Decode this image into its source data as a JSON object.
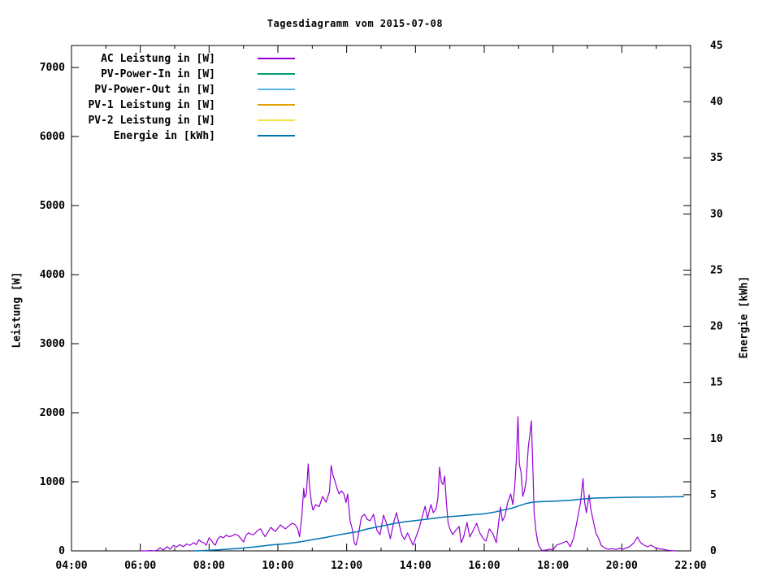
{
  "page": {
    "background": "#ffffff",
    "foreground": "#000000"
  },
  "chart_data": {
    "type": "line",
    "title": "Tagesdiagramm vom 2015-07-08",
    "x_axis": {
      "unit": "time",
      "range_hours": [
        4,
        22
      ],
      "major_tick_hours": 2,
      "minor_tick_hours": 1,
      "tick_labels": [
        "04:00",
        "06:00",
        "08:00",
        "10:00",
        "12:00",
        "14:00",
        "16:00",
        "18:00",
        "20:00",
        "22:00"
      ],
      "tick_values": [
        4,
        6,
        8,
        10,
        12,
        14,
        16,
        18,
        20,
        22
      ]
    },
    "y_left": {
      "label": "Leistung [W]",
      "range": [
        0,
        7318
      ],
      "ticks": [
        0,
        1000,
        2000,
        3000,
        4000,
        5000,
        6000,
        7000
      ],
      "tick_labels": [
        "0",
        "1000",
        "2000",
        "3000",
        "4000",
        "5000",
        "6000",
        "7000"
      ]
    },
    "y_right": {
      "label": "Energie [kWh]",
      "range": [
        0,
        45
      ],
      "ticks": [
        0,
        5,
        10,
        15,
        20,
        25,
        30,
        35,
        40,
        45
      ],
      "tick_labels": [
        "0",
        "5",
        "10",
        "15",
        "20",
        "25",
        "30",
        "35",
        "40",
        "45"
      ]
    },
    "legend_position": "top-left-inside",
    "grid": false,
    "series": [
      {
        "name": "AC Leistung in [W]",
        "color": "#9400d3",
        "axis": "left",
        "line_width": 1.2,
        "points": [
          [
            6.02,
            0
          ],
          [
            6.15,
            0
          ],
          [
            6.3,
            5
          ],
          [
            6.42,
            0
          ],
          [
            6.5,
            12
          ],
          [
            6.58,
            45
          ],
          [
            6.67,
            10
          ],
          [
            6.77,
            60
          ],
          [
            6.87,
            25
          ],
          [
            6.97,
            80
          ],
          [
            7.05,
            55
          ],
          [
            7.15,
            90
          ],
          [
            7.25,
            60
          ],
          [
            7.35,
            100
          ],
          [
            7.45,
            80
          ],
          [
            7.55,
            120
          ],
          [
            7.63,
            90
          ],
          [
            7.7,
            160
          ],
          [
            7.78,
            130
          ],
          [
            7.85,
            115
          ],
          [
            7.92,
            82
          ],
          [
            8.0,
            190
          ],
          [
            8.07,
            150
          ],
          [
            8.13,
            105
          ],
          [
            8.18,
            82
          ],
          [
            8.25,
            170
          ],
          [
            8.33,
            210
          ],
          [
            8.42,
            190
          ],
          [
            8.5,
            230
          ],
          [
            8.58,
            205
          ],
          [
            8.67,
            218
          ],
          [
            8.75,
            240
          ],
          [
            8.85,
            222
          ],
          [
            8.92,
            180
          ],
          [
            9.0,
            129
          ],
          [
            9.08,
            230
          ],
          [
            9.15,
            262
          ],
          [
            9.22,
            240
          ],
          [
            9.3,
            236
          ],
          [
            9.4,
            290
          ],
          [
            9.5,
            320
          ],
          [
            9.57,
            252
          ],
          [
            9.63,
            205
          ],
          [
            9.72,
            280
          ],
          [
            9.8,
            341
          ],
          [
            9.87,
            302
          ],
          [
            9.93,
            282
          ],
          [
            10.0,
            330
          ],
          [
            10.08,
            376
          ],
          [
            10.15,
            342
          ],
          [
            10.22,
            320
          ],
          [
            10.32,
            362
          ],
          [
            10.42,
            400
          ],
          [
            10.5,
            380
          ],
          [
            10.57,
            330
          ],
          [
            10.63,
            205
          ],
          [
            10.7,
            520
          ],
          [
            10.75,
            906
          ],
          [
            10.78,
            770
          ],
          [
            10.83,
            830
          ],
          [
            10.88,
            1259
          ],
          [
            10.92,
            950
          ],
          [
            10.97,
            710
          ],
          [
            11.02,
            590
          ],
          [
            11.1,
            670
          ],
          [
            11.2,
            640
          ],
          [
            11.3,
            788
          ],
          [
            11.4,
            705
          ],
          [
            11.5,
            860
          ],
          [
            11.55,
            1235
          ],
          [
            11.6,
            1100
          ],
          [
            11.65,
            1024
          ],
          [
            11.72,
            905
          ],
          [
            11.78,
            824
          ],
          [
            11.85,
            870
          ],
          [
            11.92,
            824
          ],
          [
            11.98,
            700
          ],
          [
            12.03,
            824
          ],
          [
            12.1,
            435
          ],
          [
            12.17,
            300
          ],
          [
            12.22,
            120
          ],
          [
            12.27,
            82
          ],
          [
            12.33,
            200
          ],
          [
            12.43,
            494
          ],
          [
            12.52,
            529
          ],
          [
            12.6,
            455
          ],
          [
            12.68,
            435
          ],
          [
            12.78,
            529
          ],
          [
            12.88,
            300
          ],
          [
            12.97,
            235
          ],
          [
            13.07,
            518
          ],
          [
            13.17,
            380
          ],
          [
            13.27,
            176
          ],
          [
            13.37,
            420
          ],
          [
            13.45,
            553
          ],
          [
            13.52,
            400
          ],
          [
            13.6,
            235
          ],
          [
            13.68,
            165
          ],
          [
            13.77,
            259
          ],
          [
            13.87,
            150
          ],
          [
            13.93,
            82
          ],
          [
            14.0,
            180
          ],
          [
            14.1,
            318
          ],
          [
            14.2,
            500
          ],
          [
            14.28,
            647
          ],
          [
            14.35,
            471
          ],
          [
            14.45,
            671
          ],
          [
            14.52,
            553
          ],
          [
            14.6,
            610
          ],
          [
            14.65,
            760
          ],
          [
            14.7,
            1212
          ],
          [
            14.75,
            1000
          ],
          [
            14.8,
            960
          ],
          [
            14.85,
            1082
          ],
          [
            14.9,
            700
          ],
          [
            14.95,
            410
          ],
          [
            15.0,
            318
          ],
          [
            15.08,
            235
          ],
          [
            15.17,
            300
          ],
          [
            15.27,
            353
          ],
          [
            15.33,
            118
          ],
          [
            15.4,
            200
          ],
          [
            15.5,
            412
          ],
          [
            15.58,
            200
          ],
          [
            15.68,
            300
          ],
          [
            15.78,
            400
          ],
          [
            15.87,
            259
          ],
          [
            15.97,
            180
          ],
          [
            16.05,
            141
          ],
          [
            16.15,
            318
          ],
          [
            16.25,
            250
          ],
          [
            16.35,
            118
          ],
          [
            16.47,
            635
          ],
          [
            16.53,
            435
          ],
          [
            16.6,
            500
          ],
          [
            16.68,
            700
          ],
          [
            16.77,
            824
          ],
          [
            16.83,
            671
          ],
          [
            16.88,
            900
          ],
          [
            16.93,
            1300
          ],
          [
            16.98,
            1941
          ],
          [
            17.02,
            1250
          ],
          [
            17.07,
            1141
          ],
          [
            17.12,
            788
          ],
          [
            17.17,
            871
          ],
          [
            17.22,
            1024
          ],
          [
            17.28,
            1500
          ],
          [
            17.33,
            1700
          ],
          [
            17.37,
            1882
          ],
          [
            17.42,
            1100
          ],
          [
            17.45,
            553
          ],
          [
            17.5,
            300
          ],
          [
            17.55,
            141
          ],
          [
            17.6,
            60
          ],
          [
            17.68,
            5
          ],
          [
            17.8,
            12
          ],
          [
            17.9,
            25
          ],
          [
            18.0,
            15
          ],
          [
            18.1,
            82
          ],
          [
            18.22,
            105
          ],
          [
            18.4,
            141
          ],
          [
            18.5,
            59
          ],
          [
            18.6,
            188
          ],
          [
            18.7,
            435
          ],
          [
            18.8,
            700
          ],
          [
            18.87,
            1047
          ],
          [
            18.92,
            700
          ],
          [
            18.97,
            553
          ],
          [
            19.05,
            812
          ],
          [
            19.1,
            600
          ],
          [
            19.17,
            435
          ],
          [
            19.25,
            250
          ],
          [
            19.32,
            188
          ],
          [
            19.4,
            82
          ],
          [
            19.5,
            40
          ],
          [
            19.6,
            25
          ],
          [
            19.72,
            32
          ],
          [
            19.83,
            20
          ],
          [
            19.93,
            35
          ],
          [
            20.03,
            25
          ],
          [
            20.13,
            42
          ],
          [
            20.23,
            62
          ],
          [
            20.35,
            118
          ],
          [
            20.45,
            200
          ],
          [
            20.55,
            118
          ],
          [
            20.65,
            82
          ],
          [
            20.75,
            59
          ],
          [
            20.85,
            82
          ],
          [
            20.97,
            47
          ],
          [
            21.08,
            30
          ],
          [
            21.2,
            24
          ],
          [
            21.32,
            10
          ],
          [
            21.45,
            4
          ],
          [
            21.55,
            0
          ]
        ]
      },
      {
        "name": "PV-Power-In in [W]",
        "color": "#009e73",
        "axis": "left",
        "line_width": 1.2,
        "points": []
      },
      {
        "name": "PV-Power-Out in [W]",
        "color": "#56b4e9",
        "axis": "left",
        "line_width": 1.2,
        "points": []
      },
      {
        "name": "PV-1 Leistung in [W]",
        "color": "#e69f00",
        "axis": "left",
        "line_width": 1.2,
        "points": []
      },
      {
        "name": "PV-2 Leistung in [W]",
        "color": "#f0e442",
        "axis": "left",
        "line_width": 1.2,
        "points": []
      },
      {
        "name": "Energie in [kWh]",
        "color": "#0072b2",
        "axis": "right",
        "line_width": 1.5,
        "points": [
          [
            7.55,
            0
          ],
          [
            7.8,
            0.02
          ],
          [
            8.0,
            0.05
          ],
          [
            8.3,
            0.1
          ],
          [
            8.6,
            0.17
          ],
          [
            9.0,
            0.25
          ],
          [
            9.4,
            0.38
          ],
          [
            9.8,
            0.52
          ],
          [
            10.2,
            0.62
          ],
          [
            10.6,
            0.78
          ],
          [
            11.0,
            1.0
          ],
          [
            11.4,
            1.2
          ],
          [
            11.8,
            1.45
          ],
          [
            12.1,
            1.6
          ],
          [
            12.3,
            1.7
          ],
          [
            12.6,
            1.95
          ],
          [
            13.0,
            2.2
          ],
          [
            13.4,
            2.45
          ],
          [
            13.7,
            2.6
          ],
          [
            14.0,
            2.7
          ],
          [
            14.4,
            2.85
          ],
          [
            14.8,
            3.0
          ],
          [
            15.2,
            3.1
          ],
          [
            15.6,
            3.2
          ],
          [
            16.0,
            3.3
          ],
          [
            16.3,
            3.45
          ],
          [
            16.5,
            3.6
          ],
          [
            16.8,
            3.8
          ],
          [
            17.0,
            4.0
          ],
          [
            17.2,
            4.2
          ],
          [
            17.4,
            4.33
          ],
          [
            17.6,
            4.38
          ],
          [
            18.0,
            4.42
          ],
          [
            18.5,
            4.5
          ],
          [
            18.9,
            4.63
          ],
          [
            19.2,
            4.7
          ],
          [
            19.6,
            4.73
          ],
          [
            20.0,
            4.76
          ],
          [
            20.5,
            4.78
          ],
          [
            21.0,
            4.8
          ],
          [
            21.4,
            4.81
          ],
          [
            21.8,
            4.83
          ]
        ]
      }
    ]
  }
}
